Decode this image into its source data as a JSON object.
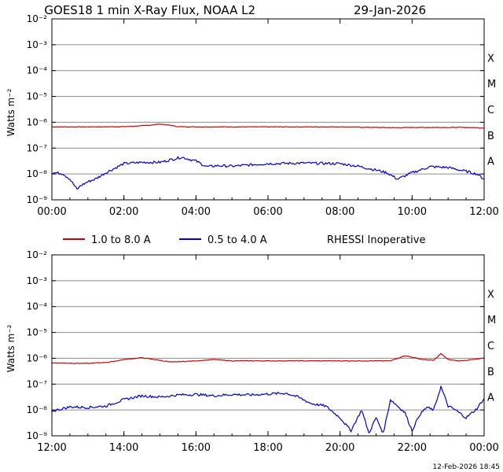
{
  "title": "GOES18 1 min X-Ray Flux, NOAA L2",
  "date": "29-Jan-2026",
  "footer_timestamp": "12-Feb-2026 18:45",
  "legend": {
    "long": "1.0 to 8.0 A",
    "short": "0.5 to 4.0 A",
    "status": "RHESSI Inoperative"
  },
  "colors": {
    "long": "#d40000",
    "short": "#0000d0",
    "grid": "#8c8c8c"
  },
  "chart_data": [
    {
      "type": "line",
      "panel": "top",
      "ylabel": "Watts m⁻²",
      "yscale": "log",
      "ylim_exp": [
        -9,
        -2
      ],
      "ytick_exponents": [
        -9,
        -8,
        -7,
        -6,
        -5,
        -4,
        -3,
        -2
      ],
      "flare_classes": [
        "A",
        "B",
        "C",
        "M",
        "X"
      ],
      "x_unit": "hour",
      "xlim": [
        0,
        12
      ],
      "xtick_labels": [
        "00:00",
        "02:00",
        "04:00",
        "06:00",
        "08:00",
        "10:00",
        "12:00"
      ],
      "series": [
        {
          "name": "1.0 to 8.0 A",
          "color": "#d40000",
          "x": [
            0,
            1,
            2,
            2.6,
            3,
            3.3,
            3.5,
            4,
            5,
            6,
            7,
            8,
            9,
            9.6,
            10,
            11,
            11.5,
            12
          ],
          "log_y": [
            -6.18,
            -6.18,
            -6.17,
            -6.13,
            -6.07,
            -6.12,
            -6.17,
            -6.18,
            -6.18,
            -6.18,
            -6.18,
            -6.18,
            -6.2,
            -6.21,
            -6.2,
            -6.2,
            -6.2,
            -6.22
          ]
        },
        {
          "name": "0.5 to 4.0 A",
          "color": "#0000d0",
          "x": [
            0,
            0.3,
            0.5,
            0.7,
            0.8,
            1,
            1.2,
            1.5,
            2,
            2.5,
            3,
            3.3,
            3.6,
            4,
            4.3,
            4.6,
            5,
            6,
            7,
            8,
            8.5,
            9,
            9.3,
            9.6,
            10,
            10.5,
            11,
            11.5,
            11.8,
            12
          ],
          "log_y": [
            -7.95,
            -7.98,
            -8.2,
            -8.6,
            -8.45,
            -8.3,
            -8.2,
            -7.95,
            -7.6,
            -7.55,
            -7.55,
            -7.45,
            -7.35,
            -7.5,
            -7.72,
            -7.68,
            -7.7,
            -7.6,
            -7.58,
            -7.6,
            -7.7,
            -7.85,
            -7.95,
            -8.2,
            -7.95,
            -7.72,
            -7.75,
            -7.9,
            -8.0,
            -8.2
          ]
        }
      ]
    },
    {
      "type": "line",
      "panel": "bottom",
      "ylabel": "Watts m⁻²",
      "yscale": "log",
      "ylim_exp": [
        -9,
        -2
      ],
      "ytick_exponents": [
        -9,
        -8,
        -7,
        -6,
        -5,
        -4,
        -3,
        -2
      ],
      "flare_classes": [
        "A",
        "B",
        "C",
        "M",
        "X"
      ],
      "x_unit": "hour",
      "xlim": [
        12,
        24
      ],
      "xtick_labels": [
        "12:00",
        "14:00",
        "16:00",
        "18:00",
        "20:00",
        "22:00",
        "00:00"
      ],
      "series": [
        {
          "name": "1.0 to 8.0 A",
          "color": "#d40000",
          "x": [
            12,
            13,
            13.6,
            14,
            14.5,
            15,
            15.3,
            16,
            16.5,
            17,
            18,
            19,
            20,
            21,
            21.4,
            21.8,
            22.3,
            22.6,
            22.8,
            23.0,
            23.3,
            23.7,
            24
          ],
          "log_y": [
            -6.18,
            -6.2,
            -6.15,
            -6.05,
            -5.98,
            -6.08,
            -6.15,
            -6.1,
            -6.05,
            -6.1,
            -6.1,
            -6.1,
            -6.1,
            -6.1,
            -6.1,
            -5.9,
            -6.05,
            -6.08,
            -5.82,
            -6.05,
            -6.1,
            -6.05,
            -6.0
          ]
        },
        {
          "name": "0.5 to 4.0 A",
          "color": "#0000d0",
          "x": [
            12,
            12.5,
            13,
            13.5,
            14,
            14.5,
            15,
            15.5,
            16,
            16.5,
            17,
            17.5,
            18,
            18.5,
            18.8,
            19.2,
            19.6,
            20,
            20.3,
            20.6,
            20.8,
            21.0,
            21.2,
            21.4,
            21.6,
            21.8,
            22.0,
            22.2,
            22.4,
            22.6,
            22.8,
            23.0,
            23.2,
            23.5,
            23.8,
            24
          ],
          "log_y": [
            -8.05,
            -7.88,
            -7.9,
            -7.85,
            -7.6,
            -7.45,
            -7.5,
            -7.42,
            -7.4,
            -7.45,
            -7.4,
            -7.42,
            -7.38,
            -7.35,
            -7.48,
            -7.75,
            -7.85,
            -8.3,
            -8.8,
            -8.0,
            -8.9,
            -8.3,
            -8.9,
            -7.6,
            -7.85,
            -8.1,
            -8.8,
            -8.2,
            -7.9,
            -8.0,
            -7.1,
            -7.85,
            -8.0,
            -8.3,
            -7.95,
            -7.55
          ]
        }
      ]
    }
  ]
}
